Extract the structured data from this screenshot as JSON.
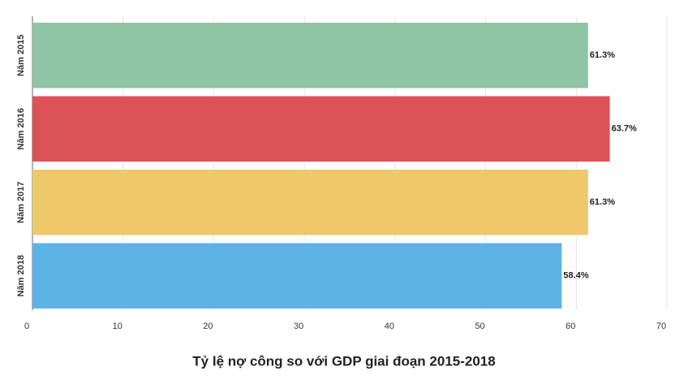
{
  "chart_data": {
    "type": "bar",
    "orientation": "horizontal",
    "title": "Tỷ lệ nợ công so với GDP giai đoạn 2015-2018",
    "categories": [
      "Năm 2015",
      "Năm 2016",
      "Năm 2017",
      "Năm 2018"
    ],
    "values": [
      61.3,
      63.7,
      61.3,
      58.4
    ],
    "value_labels": [
      "61.3%",
      "63.7%",
      "61.3%",
      "58.4%"
    ],
    "colors": [
      "#8fc4a4",
      "#db5356",
      "#efc86a",
      "#5db3e3"
    ],
    "xlim": [
      0,
      70
    ],
    "xticks": [
      0,
      10,
      20,
      30,
      40,
      50,
      60,
      70
    ],
    "grid": true
  }
}
